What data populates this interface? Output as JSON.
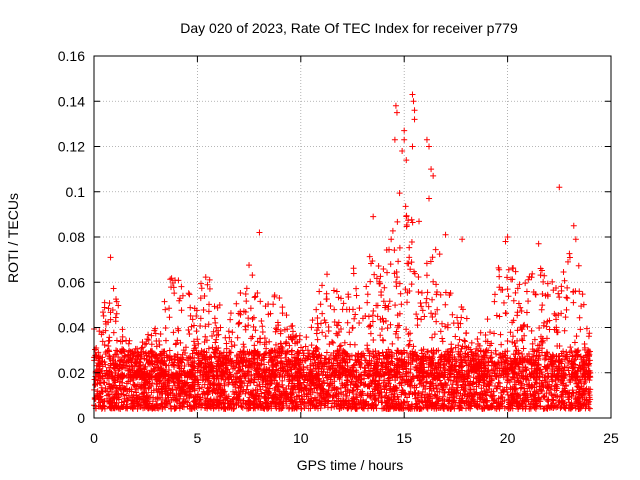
{
  "chart_data": {
    "type": "scatter",
    "title": "Day 020 of 2023, Rate Of TEC Index for receiver p779",
    "xlabel": "GPS time / hours",
    "ylabel": "ROTI / TECUs",
    "xlim": [
      0,
      25
    ],
    "ylim": [
      0,
      0.16
    ],
    "xticks": [
      0,
      5,
      10,
      15,
      20,
      25
    ],
    "xtick_labels": [
      "0",
      "5",
      "10",
      "15",
      "20",
      "25"
    ],
    "yticks": [
      0,
      0.02,
      0.04,
      0.06,
      0.08,
      0.1,
      0.12,
      0.14,
      0.16
    ],
    "ytick_labels": [
      "0",
      "0.02",
      "0.04",
      "0.06",
      "0.08",
      "0.1",
      "0.12",
      "0.14",
      "0.16"
    ],
    "grid": true,
    "legend": "none",
    "marker": "plus",
    "marker_color": "#ff0000",
    "notable_points": [
      {
        "x": 8.0,
        "y": 0.082
      },
      {
        "x": 14.6,
        "y": 0.138
      },
      {
        "x": 14.65,
        "y": 0.135
      },
      {
        "x": 15.4,
        "y": 0.143
      },
      {
        "x": 15.45,
        "y": 0.14
      },
      {
        "x": 15.5,
        "y": 0.136
      },
      {
        "x": 15.5,
        "y": 0.132
      },
      {
        "x": 15.0,
        "y": 0.127
      },
      {
        "x": 15.0,
        "y": 0.123
      },
      {
        "x": 14.55,
        "y": 0.123
      },
      {
        "x": 14.9,
        "y": 0.118
      },
      {
        "x": 15.1,
        "y": 0.114
      },
      {
        "x": 15.4,
        "y": 0.12
      },
      {
        "x": 16.1,
        "y": 0.123
      },
      {
        "x": 16.2,
        "y": 0.12
      },
      {
        "x": 16.3,
        "y": 0.11
      },
      {
        "x": 16.4,
        "y": 0.107
      },
      {
        "x": 16.2,
        "y": 0.097
      },
      {
        "x": 22.5,
        "y": 0.102
      },
      {
        "x": 23.2,
        "y": 0.085
      },
      {
        "x": 13.5,
        "y": 0.089
      },
      {
        "x": 20.0,
        "y": 0.08
      },
      {
        "x": 19.9,
        "y": 0.078
      },
      {
        "x": 17.8,
        "y": 0.079
      },
      {
        "x": 17.0,
        "y": 0.081
      },
      {
        "x": 0.8,
        "y": 0.071
      },
      {
        "x": 21.5,
        "y": 0.077
      },
      {
        "x": 23.3,
        "y": 0.079
      }
    ],
    "envelope_max": [
      [
        0.0,
        0.04
      ],
      [
        0.3,
        0.045
      ],
      [
        0.6,
        0.056
      ],
      [
        0.8,
        0.071
      ],
      [
        1.0,
        0.055
      ],
      [
        1.3,
        0.046
      ],
      [
        1.6,
        0.04
      ],
      [
        2.0,
        0.04
      ],
      [
        2.4,
        0.036
      ],
      [
        2.8,
        0.038
      ],
      [
        3.2,
        0.042
      ],
      [
        3.6,
        0.062
      ],
      [
        4.0,
        0.064
      ],
      [
        4.4,
        0.058
      ],
      [
        4.8,
        0.056
      ],
      [
        5.2,
        0.064
      ],
      [
        5.6,
        0.062
      ],
      [
        6.0,
        0.052
      ],
      [
        6.4,
        0.044
      ],
      [
        6.8,
        0.05
      ],
      [
        7.2,
        0.064
      ],
      [
        7.5,
        0.068
      ],
      [
        7.8,
        0.06
      ],
      [
        8.2,
        0.05
      ],
      [
        8.6,
        0.056
      ],
      [
        9.0,
        0.054
      ],
      [
        9.4,
        0.048
      ],
      [
        9.8,
        0.04
      ],
      [
        10.2,
        0.036
      ],
      [
        10.6,
        0.044
      ],
      [
        11.0,
        0.062
      ],
      [
        11.4,
        0.066
      ],
      [
        11.8,
        0.056
      ],
      [
        12.2,
        0.062
      ],
      [
        12.6,
        0.068
      ],
      [
        13.0,
        0.05
      ],
      [
        13.4,
        0.078
      ],
      [
        13.8,
        0.07
      ],
      [
        14.1,
        0.076
      ],
      [
        14.4,
        0.08
      ],
      [
        14.7,
        0.1
      ],
      [
        15.0,
        0.1
      ],
      [
        15.3,
        0.095
      ],
      [
        15.6,
        0.09
      ],
      [
        15.9,
        0.085
      ],
      [
        16.2,
        0.088
      ],
      [
        16.5,
        0.08
      ],
      [
        16.8,
        0.07
      ],
      [
        17.1,
        0.062
      ],
      [
        17.4,
        0.066
      ],
      [
        17.7,
        0.06
      ],
      [
        18.0,
        0.046
      ],
      [
        18.5,
        0.04
      ],
      [
        19.0,
        0.046
      ],
      [
        19.5,
        0.066
      ],
      [
        19.9,
        0.07
      ],
      [
        20.3,
        0.066
      ],
      [
        20.7,
        0.062
      ],
      [
        21.1,
        0.064
      ],
      [
        21.5,
        0.07
      ],
      [
        21.9,
        0.064
      ],
      [
        22.3,
        0.06
      ],
      [
        22.7,
        0.07
      ],
      [
        23.0,
        0.074
      ],
      [
        23.4,
        0.076
      ],
      [
        23.7,
        0.06
      ],
      [
        24.0,
        0.045
      ]
    ],
    "base_band": [
      0.004,
      0.03
    ],
    "x_data_range": [
      0,
      24
    ]
  }
}
